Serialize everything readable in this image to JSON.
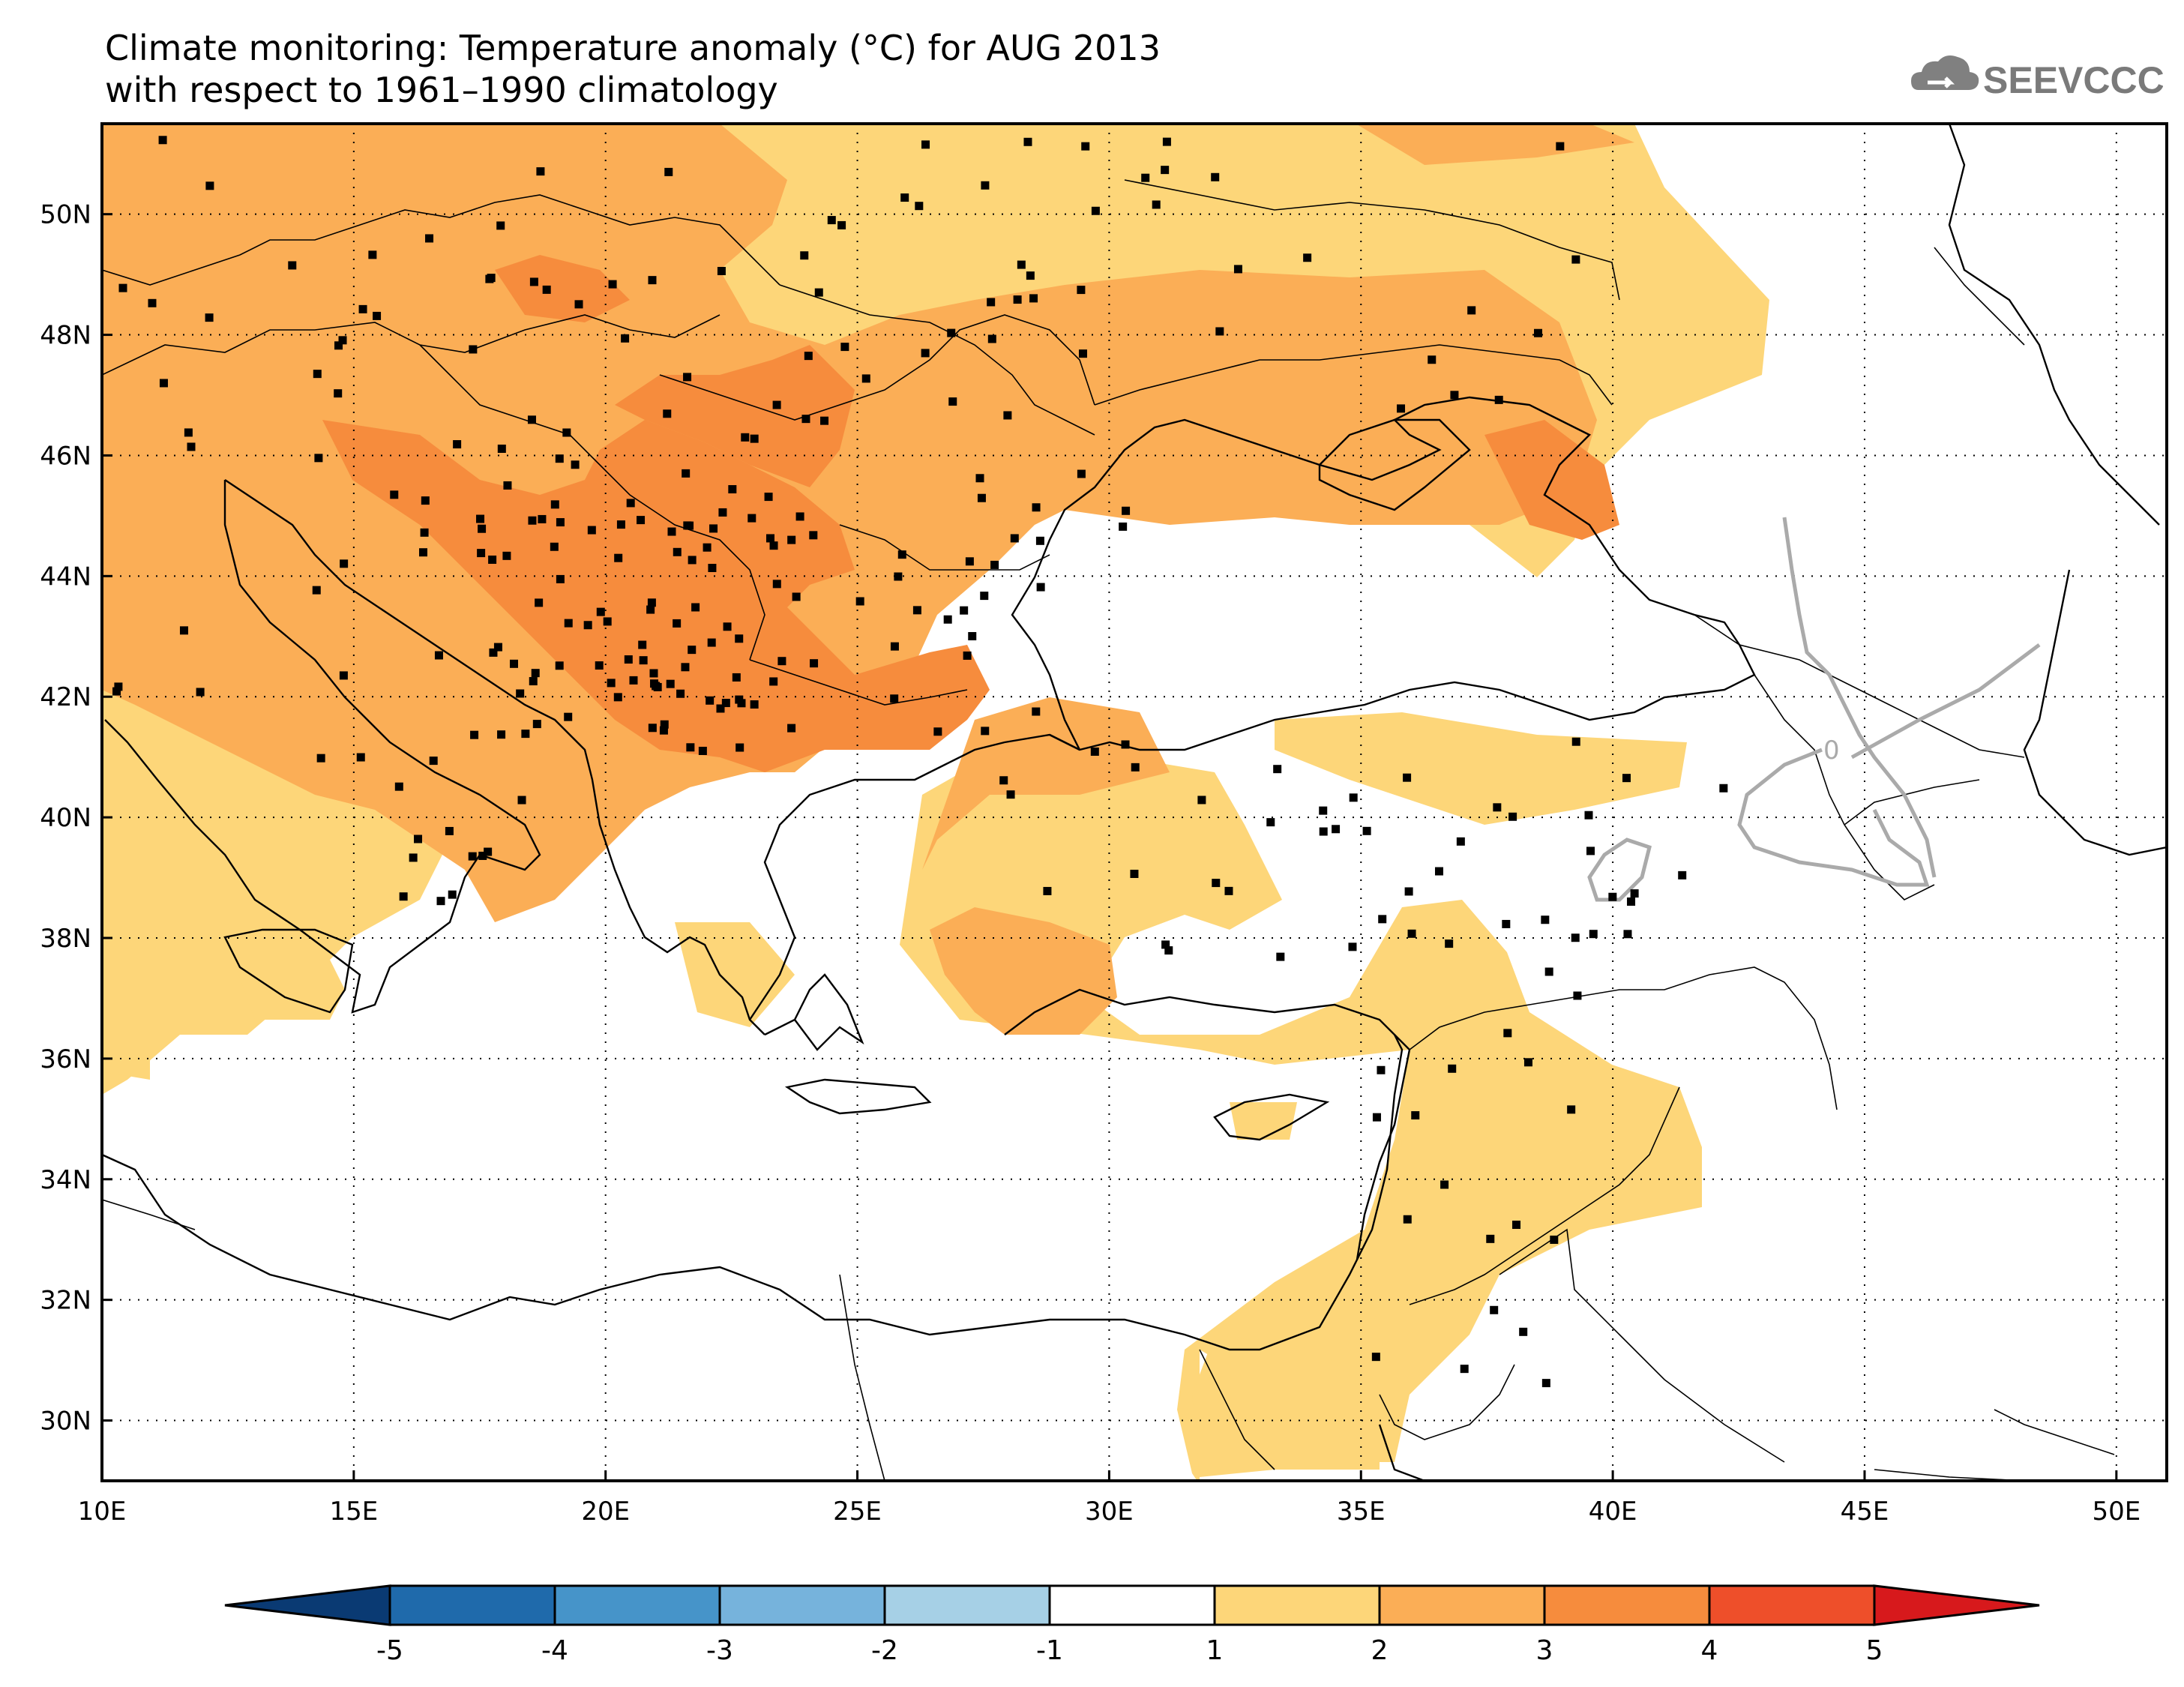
{
  "title": {
    "line1": "Climate monitoring: Temperature anomaly (°C) for AUG 2013",
    "line2": "with respect to 1961–1990 climatology"
  },
  "logo": {
    "text": "SEEVCCC",
    "icon": "cloud-icon"
  },
  "map": {
    "lon_range": [
      10,
      51
    ],
    "lat_range": [
      29,
      51.5
    ],
    "lon_ticks": [
      "10E",
      "15E",
      "20E",
      "25E",
      "30E",
      "35E",
      "40E",
      "45E",
      "50E"
    ],
    "lat_ticks": [
      "30N",
      "32N",
      "34N",
      "36N",
      "38N",
      "40N",
      "42N",
      "44N",
      "46N",
      "48N",
      "50N"
    ],
    "contour_label": "0",
    "grid": "dotted"
  },
  "colorbar": {
    "ticks": [
      "-5",
      "-4",
      "-3",
      "-2",
      "-1",
      "1",
      "2",
      "3",
      "4",
      "5"
    ],
    "colors": [
      "#0a3a73",
      "#1f6aab",
      "#4694c9",
      "#76b3dc",
      "#a6d0e6",
      "#ffffff",
      "#fdd679",
      "#fbae56",
      "#f68c3d",
      "#ee4f2a",
      "#d7191c"
    ]
  },
  "colors": {
    "c1": "#fdd679",
    "c2": "#fbae56",
    "c3": "#f68c3d",
    "c4": "#ee4f2a",
    "land": "#ffffff",
    "contour": "#aaaaaa"
  }
}
